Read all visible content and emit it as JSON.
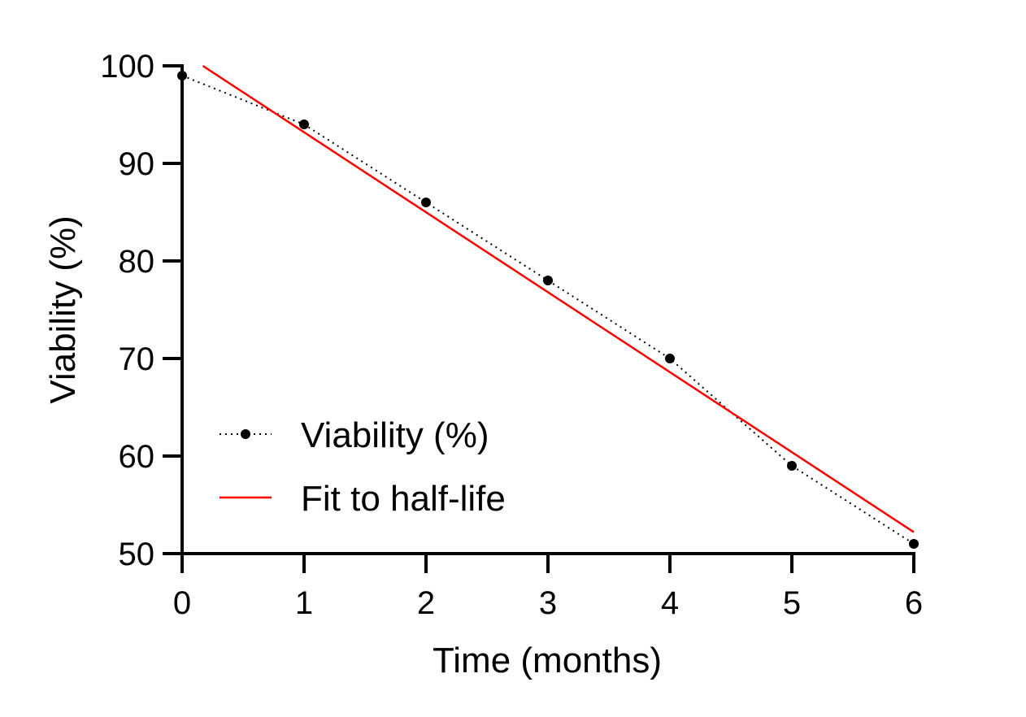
{
  "chart_data": {
    "type": "line",
    "title": "",
    "xlabel": "Time (months)",
    "ylabel": "Viability (%)",
    "xlim": [
      0,
      6
    ],
    "ylim": [
      50,
      100
    ],
    "xticks": [
      0,
      1,
      2,
      3,
      4,
      5,
      6
    ],
    "yticks": [
      50,
      60,
      70,
      80,
      90,
      100
    ],
    "xtick_labels": [
      "0",
      "1",
      "2",
      "3",
      "4",
      "5",
      "6"
    ],
    "ytick_labels": [
      "50",
      "60",
      "70",
      "80",
      "90",
      "100"
    ],
    "grid": false,
    "legend_position": "bottom-left",
    "series": [
      {
        "name": "Viability (%)",
        "style": "dotted line with markers",
        "color": "#000000",
        "x": [
          0,
          1,
          2,
          3,
          4,
          5,
          6
        ],
        "values": [
          99,
          94,
          86,
          78,
          70,
          59,
          51
        ]
      },
      {
        "name": "Fit to half-life",
        "style": "solid line",
        "color": "#ff0000",
        "x": [
          0.17,
          6
        ],
        "values": [
          100,
          52.2
        ]
      }
    ]
  }
}
